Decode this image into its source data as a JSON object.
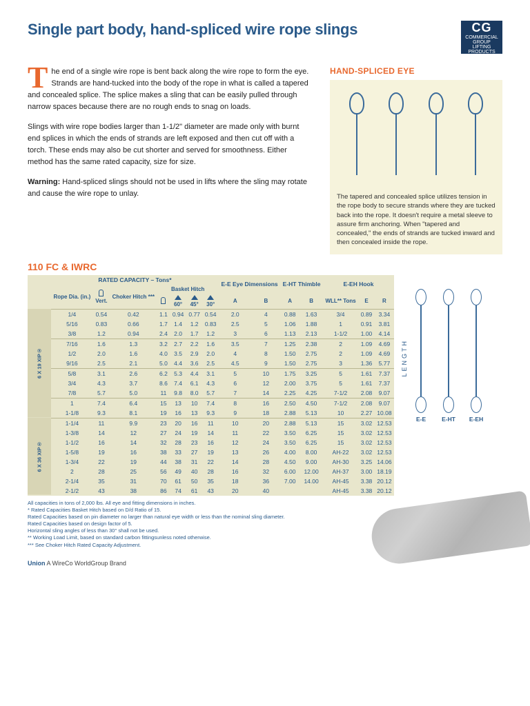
{
  "title": "Single part body, hand-spliced wire rope slings",
  "logo": {
    "abbr": "CG",
    "line1": "COMMERCIAL GROUP",
    "line2": "LIFTING PRODUCTS"
  },
  "para1_start": "T",
  "para1": "he end of a single wire rope is bent back along the wire rope to form the eye. Strands are hand-tucked into the body of the rope in what is called a tapered and concealed splice. The splice makes a sling that can be easily pulled through narrow spaces because there are no rough ends to snag on loads.",
  "para2": "Slings with wire rope bodies larger than 1-1/2\" diameter are made only with burnt end splices in which the ends of strands are left exposed and then cut off with a torch. These ends may also be cut shorter and served for smoothness. Either method has the same rated capacity, size for size.",
  "warning_label": "Warning:",
  "warning_text": " Hand-spliced slings should not be used in lifts where the sling may rotate and cause the wire rope to unlay.",
  "figure_head": "HAND-SPLICED EYE",
  "figure_caption": "The tapered and concealed splice utilizes tension in the rope body to secure strands where they are tucked back into the rope. It doesn't require a metal sleeve to assure firm anchoring. When \"tapered and concealed,\" the ends of strands are tucked inward and then concealed inside the rope.",
  "table_title": "110 FC & IWRC",
  "thead": {
    "rated": "RATED CAPACITY – Tons*",
    "basket": "Basket Hitch",
    "ee": "E-E Eye Dimensions",
    "eht": "E-HT Thimble",
    "eeh": "E-EH Hook",
    "cols": [
      "Rope Dia. (in.)",
      "Vert.",
      "Choker Hitch ***",
      "",
      "60°",
      "45°",
      "30°",
      "A",
      "B",
      "A",
      "B",
      "WLL** Tons",
      "E",
      "R"
    ]
  },
  "groups": [
    {
      "label": "6 X 19 XIP®",
      "rows": [
        [
          "1/4",
          "0.54",
          "0.42",
          "1.1",
          "0.94",
          "0.77",
          "0.54",
          "2.0",
          "4",
          "0.88",
          "1.63",
          "3/4",
          "0.89",
          "3.34"
        ],
        [
          "5/16",
          "0.83",
          "0.66",
          "1.7",
          "1.4",
          "1.2",
          "0.83",
          "2.5",
          "5",
          "1.06",
          "1.88",
          "1",
          "0.91",
          "3.81"
        ],
        [
          "3/8",
          "1.2",
          "0.94",
          "2.4",
          "2.0",
          "1.7",
          "1.2",
          "3",
          "6",
          "1.13",
          "2.13",
          "1-1/2",
          "1.00",
          "4.14"
        ],
        [
          "7/16",
          "1.6",
          "1.3",
          "3.2",
          "2.7",
          "2.2",
          "1.6",
          "3.5",
          "7",
          "1.25",
          "2.38",
          "2",
          "1.09",
          "4.69"
        ],
        [
          "1/2",
          "2.0",
          "1.6",
          "4.0",
          "3.5",
          "2.9",
          "2.0",
          "4",
          "8",
          "1.50",
          "2.75",
          "2",
          "1.09",
          "4.69"
        ],
        [
          "9/16",
          "2.5",
          "2.1",
          "5.0",
          "4.4",
          "3.6",
          "2.5",
          "4.5",
          "9",
          "1.50",
          "2.75",
          "3",
          "1.36",
          "5.77"
        ],
        [
          "5/8",
          "3.1",
          "2.6",
          "6.2",
          "5.3",
          "4.4",
          "3.1",
          "5",
          "10",
          "1.75",
          "3.25",
          "5",
          "1.61",
          "7.37"
        ],
        [
          "3/4",
          "4.3",
          "3.7",
          "8.6",
          "7.4",
          "6.1",
          "4.3",
          "6",
          "12",
          "2.00",
          "3.75",
          "5",
          "1.61",
          "7.37"
        ],
        [
          "7/8",
          "5.7",
          "5.0",
          "11",
          "9.8",
          "8.0",
          "5.7",
          "7",
          "14",
          "2.25",
          "4.25",
          "7-1/2",
          "2.08",
          "9.07"
        ],
        [
          "1",
          "7.4",
          "6.4",
          "15",
          "13",
          "10",
          "7.4",
          "8",
          "16",
          "2.50",
          "4.50",
          "7-1/2",
          "2.08",
          "9.07"
        ],
        [
          "1-1/8",
          "9.3",
          "8.1",
          "19",
          "16",
          "13",
          "9.3",
          "9",
          "18",
          "2.88",
          "5.13",
          "10",
          "2.27",
          "10.08"
        ]
      ]
    },
    {
      "label": "6 X 36 XIP®",
      "rows": [
        [
          "1-1/4",
          "11",
          "9.9",
          "23",
          "20",
          "16",
          "11",
          "10",
          "20",
          "2.88",
          "5.13",
          "15",
          "3.02",
          "12.53"
        ],
        [
          "1-3/8",
          "14",
          "12",
          "27",
          "24",
          "19",
          "14",
          "11",
          "22",
          "3.50",
          "6.25",
          "15",
          "3.02",
          "12.53"
        ],
        [
          "1-1/2",
          "16",
          "14",
          "32",
          "28",
          "23",
          "16",
          "12",
          "24",
          "3.50",
          "6.25",
          "15",
          "3.02",
          "12.53"
        ],
        [
          "1-5/8",
          "19",
          "16",
          "38",
          "33",
          "27",
          "19",
          "13",
          "26",
          "4.00",
          "8.00",
          "AH-22",
          "3.02",
          "12.53"
        ],
        [
          "1-3/4",
          "22",
          "19",
          "44",
          "38",
          "31",
          "22",
          "14",
          "28",
          "4.50",
          "9.00",
          "AH-30",
          "3.25",
          "14.06"
        ],
        [
          "2",
          "28",
          "25",
          "56",
          "49",
          "40",
          "28",
          "16",
          "32",
          "6.00",
          "12.00",
          "AH-37",
          "3.00",
          "18.19"
        ],
        [
          "2-1/4",
          "35",
          "31",
          "70",
          "61",
          "50",
          "35",
          "18",
          "36",
          "7.00",
          "14.00",
          "AH-45",
          "3.38",
          "20.12"
        ],
        [
          "2-1/2",
          "43",
          "38",
          "86",
          "74",
          "61",
          "43",
          "20",
          "40",
          "",
          "",
          "AH-45",
          "3.38",
          "20.12"
        ]
      ]
    }
  ],
  "diagram": {
    "length": "LENGTH",
    "labels": [
      "E-E",
      "E-HT",
      "E-EH"
    ]
  },
  "footnotes": [
    "All capacities in tons of 2,000 lbs. All eye and fitting dimensions in inches.",
    "* Rated Capacities Basket Hitch based on D/d Ratio of 15.",
    "Rated Capacities based on pin diameter no larger than natural eye width or less than the nominal sling diameter.",
    "Rated Capacities based on design factor of 5.",
    "Horizontal sling angles of less than 30° shall not be used.",
    "** Working Load Limit, based on standard carbon fittingsunless noted otherwise.",
    "*** See Choker Hitch Rated Capacity Adjustment."
  ],
  "footer_brand": "Union",
  "footer_text": "  A WireCo WorldGroup Brand",
  "colors": {
    "accent_blue": "#2a5a8a",
    "accent_orange": "#e8682e",
    "table_bg": "#e8e6cc",
    "figure_bg": "#f6f3dc"
  }
}
